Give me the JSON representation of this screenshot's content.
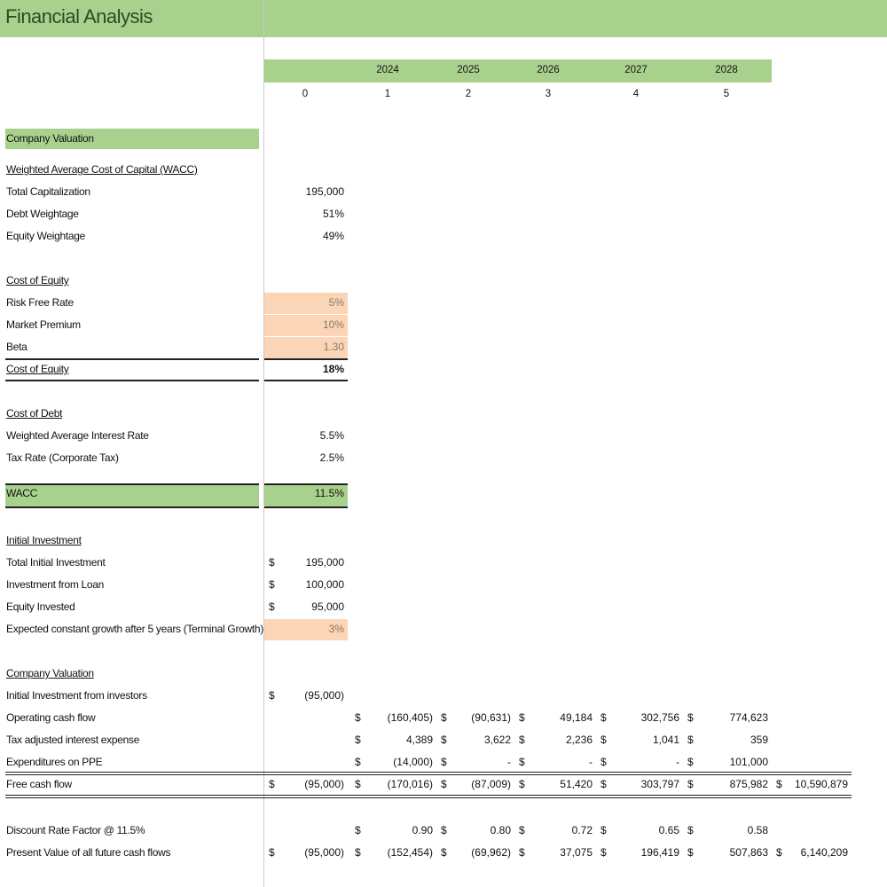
{
  "title": "Financial Analysis",
  "years": [
    "2024",
    "2025",
    "2026",
    "2027",
    "2028"
  ],
  "period_index": [
    "0",
    "1",
    "2",
    "3",
    "4",
    "5"
  ],
  "colors": {
    "green": "#a9d18e",
    "peach": "#fbd5b5"
  },
  "rows": [
    {
      "label": "Company Valuation",
      "style": "section",
      "cells": []
    },
    {
      "label": "Weighted Average Cost of Capital (WACC)",
      "style": "heading",
      "cells": []
    },
    {
      "label": "Total Capitalization",
      "cells": [
        {
          "v": "195,000"
        }
      ]
    },
    {
      "label": "Debt Weightage",
      "cells": [
        {
          "v": "51%"
        }
      ]
    },
    {
      "label": "Equity Weightage",
      "cells": [
        {
          "v": "49%"
        }
      ]
    },
    {
      "label": "Cost of Equity",
      "style": "heading",
      "cells": []
    },
    {
      "label": "Risk Free Rate",
      "input": true,
      "cells": [
        {
          "v": "5%"
        }
      ]
    },
    {
      "label": "Market Premium",
      "input": true,
      "cells": [
        {
          "v": "10%"
        }
      ]
    },
    {
      "label": "Beta",
      "input": true,
      "cells": [
        {
          "v": "1.30"
        }
      ]
    },
    {
      "label": "Cost of Equity",
      "style": "total",
      "cells": [
        {
          "v": "18%"
        }
      ]
    },
    {
      "label": "Cost of Debt",
      "style": "heading",
      "cells": []
    },
    {
      "label": "Weighted Average Interest Rate",
      "cells": [
        {
          "v": "5.5%"
        }
      ]
    },
    {
      "label": "Tax Rate (Corporate Tax)",
      "cells": [
        {
          "v": "2.5%"
        }
      ]
    },
    {
      "label": "WACC",
      "style": "wacc",
      "cells": [
        {
          "v": "11.5%"
        }
      ]
    },
    {
      "label": "Initial Investment",
      "style": "heading",
      "cells": []
    },
    {
      "label": "Total Initial Investment",
      "cells": [
        {
          "d": "$",
          "v": "195,000"
        }
      ]
    },
    {
      "label": "Investment from Loan",
      "cells": [
        {
          "d": "$",
          "v": "100,000"
        }
      ]
    },
    {
      "label": "Equity Invested",
      "cells": [
        {
          "d": "$",
          "v": "95,000"
        }
      ]
    },
    {
      "label": "Expected constant growth after 5 years (Terminal Growth)",
      "input": true,
      "cells": [
        {
          "v": "3%"
        }
      ]
    },
    {
      "label": "Company Valuation",
      "style": "heading",
      "cells": []
    },
    {
      "label": "Initial Investment from investors",
      "cells": [
        {
          "d": "$",
          "v": "(95,000)"
        }
      ]
    },
    {
      "label": "Operating cash flow",
      "cells": [
        null,
        {
          "d": "$",
          "v": "(160,405)"
        },
        {
          "d": "$",
          "v": "(90,631)"
        },
        {
          "d": "$",
          "v": "49,184"
        },
        {
          "d": "$",
          "v": "302,756"
        },
        {
          "d": "$",
          "v": "774,623"
        }
      ]
    },
    {
      "label": "Tax adjusted interest expense",
      "cells": [
        null,
        {
          "d": "$",
          "v": "4,389"
        },
        {
          "d": "$",
          "v": "3,622"
        },
        {
          "d": "$",
          "v": "2,236"
        },
        {
          "d": "$",
          "v": "1,041"
        },
        {
          "d": "$",
          "v": "359"
        }
      ]
    },
    {
      "label": "Expenditures on PPE",
      "cells": [
        null,
        {
          "d": "$",
          "v": "(14,000)"
        },
        {
          "d": "$",
          "v": "-"
        },
        {
          "d": "$",
          "v": "-"
        },
        {
          "d": "$",
          "v": "-"
        },
        {
          "d": "$",
          "v": "101,000"
        }
      ]
    },
    {
      "label": "Free cash flow",
      "style": "fcf",
      "cells": [
        {
          "d": "$",
          "v": "(95,000)"
        },
        {
          "d": "$",
          "v": "(170,016)"
        },
        {
          "d": "$",
          "v": "(87,009)"
        },
        {
          "d": "$",
          "v": "51,420"
        },
        {
          "d": "$",
          "v": "303,797"
        },
        {
          "d": "$",
          "v": "875,982"
        },
        {
          "d": "$",
          "v": "10,590,879"
        }
      ]
    },
    {
      "label": "Discount Rate Factor @ 11.5%",
      "cells": [
        null,
        {
          "d": "$",
          "v": "0.90"
        },
        {
          "d": "$",
          "v": "0.80"
        },
        {
          "d": "$",
          "v": "0.72"
        },
        {
          "d": "$",
          "v": "0.65"
        },
        {
          "d": "$",
          "v": "0.58"
        }
      ]
    },
    {
      "label": "Present Value of all future cash flows",
      "cells": [
        {
          "d": "$",
          "v": "(95,000)"
        },
        {
          "d": "$",
          "v": "(152,454)"
        },
        {
          "d": "$",
          "v": "(69,962)"
        },
        {
          "d": "$",
          "v": "37,075"
        },
        {
          "d": "$",
          "v": "196,419"
        },
        {
          "d": "$",
          "v": "507,863"
        },
        {
          "d": "$",
          "v": "6,140,209"
        }
      ]
    }
  ]
}
